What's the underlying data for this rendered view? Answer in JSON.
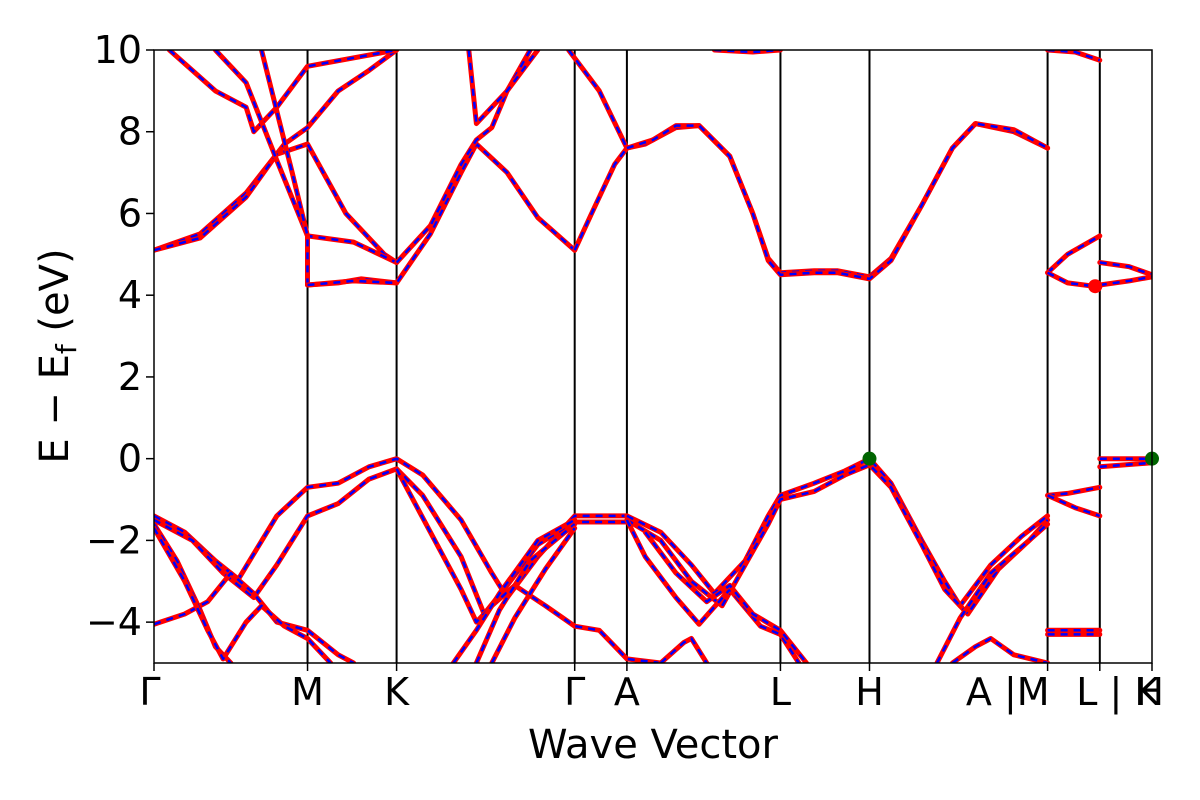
{
  "chart_data": {
    "type": "line",
    "title": "",
    "xlabel": "Wave Vector",
    "ylabel_parts": {
      "main": "E − E",
      "sub": "f",
      "unit": " (eV)"
    },
    "ylim": [
      -5,
      10
    ],
    "yticks": [
      -4,
      -2,
      0,
      2,
      4,
      6,
      8,
      10
    ],
    "ytick_labels": [
      "−4",
      "−2",
      "0",
      "2",
      "4",
      "6",
      "8",
      "10"
    ],
    "kpath_range": [
      0,
      6.5
    ],
    "high_symmetry_points": [
      {
        "label": "Γ",
        "k": 0.0
      },
      {
        "label": "M",
        "k": 1.0
      },
      {
        "label": "K",
        "k": 1.58
      },
      {
        "label": "Γ",
        "k": 2.74
      },
      {
        "label": "A",
        "k": 3.08
      },
      {
        "label": "L",
        "k": 4.08
      },
      {
        "label": "H",
        "k": 4.66
      },
      {
        "label": "A |M",
        "k": 5.82
      },
      {
        "label": "L | K",
        "k": 6.16
      },
      {
        "label": "H",
        "k": 6.5
      }
    ],
    "band_colors": {
      "bands": "#ff0000",
      "overlay": "#0000ff",
      "vbm": "#006400",
      "cbm": "#ff0000",
      "vlines": "#000000"
    },
    "markers": [
      {
        "name": "VBM",
        "k": 4.66,
        "e": 0.0
      },
      {
        "name": "VBM",
        "k": 6.5,
        "e": 0.0
      },
      {
        "name": "CBM",
        "k": 6.13,
        "e": 4.22
      }
    ],
    "series": [
      {
        "points": [
          [
            0,
            5.1
          ],
          [
            0.3,
            5.5
          ],
          [
            0.6,
            6.5
          ],
          [
            0.85,
            7.7
          ],
          [
            1.0,
            8.1
          ],
          [
            1.2,
            9.0
          ],
          [
            1.4,
            9.5
          ],
          [
            1.58,
            10.0
          ]
        ]
      },
      {
        "points": [
          [
            0,
            5.1
          ],
          [
            0.3,
            5.4
          ],
          [
            0.6,
            6.4
          ],
          [
            0.8,
            7.45
          ],
          [
            1.0,
            7.7
          ],
          [
            1.25,
            6.0
          ],
          [
            1.5,
            5.0
          ],
          [
            1.58,
            4.8
          ]
        ]
      },
      {
        "points": [
          [
            0.1,
            10.0
          ],
          [
            0.4,
            9.0
          ],
          [
            0.6,
            8.6
          ],
          [
            0.65,
            8.0
          ],
          [
            0.8,
            8.6
          ],
          [
            1.0,
            9.6
          ],
          [
            1.58,
            10.0
          ]
        ]
      },
      {
        "points": [
          [
            0.4,
            10.0
          ],
          [
            0.6,
            9.2
          ],
          [
            0.8,
            7.3
          ],
          [
            1.0,
            5.45
          ],
          [
            1.3,
            5.3
          ],
          [
            1.58,
            4.8
          ]
        ]
      },
      {
        "points": [
          [
            0.7,
            10.0
          ],
          [
            0.9,
            7.0
          ],
          [
            1.0,
            5.45
          ],
          [
            1.0,
            4.25
          ],
          [
            1.2,
            4.3
          ],
          [
            1.35,
            4.4
          ],
          [
            1.58,
            4.3
          ]
        ]
      },
      {
        "points": [
          [
            1.0,
            4.25
          ],
          [
            1.3,
            4.35
          ],
          [
            1.58,
            4.3
          ],
          [
            1.8,
            5.5
          ],
          [
            2.0,
            7.0
          ],
          [
            2.1,
            7.7
          ],
          [
            2.3,
            7.0
          ],
          [
            2.5,
            5.9
          ],
          [
            2.74,
            5.1
          ]
        ]
      },
      {
        "points": [
          [
            1.58,
            4.8
          ],
          [
            1.8,
            5.7
          ],
          [
            2.0,
            7.2
          ],
          [
            2.1,
            7.8
          ],
          [
            2.2,
            8.1
          ],
          [
            2.3,
            9.0
          ],
          [
            2.45,
            10.0
          ]
        ]
      },
      {
        "points": [
          [
            2.05,
            10.0
          ],
          [
            2.1,
            8.2
          ],
          [
            2.3,
            9.0
          ],
          [
            2.5,
            10.0
          ]
        ]
      },
      {
        "points": [
          [
            2.74,
            5.1
          ],
          [
            2.85,
            6.0
          ],
          [
            3.0,
            7.2
          ],
          [
            3.08,
            7.6
          ]
        ]
      },
      {
        "points": [
          [
            2.7,
            10.0
          ],
          [
            2.9,
            9.0
          ],
          [
            3.08,
            7.6
          ]
        ]
      },
      {
        "points": [
          [
            3.08,
            7.6
          ],
          [
            3.2,
            7.7
          ],
          [
            3.4,
            8.1
          ],
          [
            3.55,
            8.15
          ],
          [
            3.75,
            7.4
          ],
          [
            3.9,
            6.0
          ],
          [
            4.0,
            4.9
          ],
          [
            4.08,
            4.55
          ],
          [
            4.3,
            4.6
          ],
          [
            4.45,
            4.6
          ],
          [
            4.66,
            4.45
          ],
          [
            4.8,
            4.9
          ],
          [
            5.0,
            6.2
          ],
          [
            5.2,
            7.6
          ],
          [
            5.35,
            8.2
          ],
          [
            5.6,
            8.0
          ],
          [
            5.82,
            7.6
          ]
        ]
      },
      {
        "points": [
          [
            3.08,
            7.6
          ],
          [
            3.25,
            7.8
          ],
          [
            3.4,
            8.15
          ],
          [
            3.55,
            8.15
          ],
          [
            3.75,
            7.4
          ],
          [
            3.9,
            6.0
          ],
          [
            4.0,
            4.85
          ],
          [
            4.08,
            4.5
          ],
          [
            4.3,
            4.55
          ],
          [
            4.45,
            4.55
          ],
          [
            4.66,
            4.4
          ],
          [
            4.8,
            4.85
          ],
          [
            5.0,
            6.2
          ],
          [
            5.2,
            7.6
          ],
          [
            5.35,
            8.2
          ],
          [
            5.6,
            8.05
          ],
          [
            5.82,
            7.6
          ]
        ]
      },
      {
        "points": [
          [
            3.65,
            10.0
          ],
          [
            3.9,
            9.95
          ],
          [
            4.08,
            10.0
          ]
        ]
      },
      {
        "points": [
          [
            5.82,
            10.0
          ],
          [
            6.0,
            9.95
          ],
          [
            6.16,
            9.75
          ]
        ]
      },
      {
        "points": [
          [
            5.82,
            4.55
          ],
          [
            5.95,
            5.0
          ],
          [
            6.16,
            5.45
          ]
        ]
      },
      {
        "points": [
          [
            5.82,
            4.55
          ],
          [
            5.95,
            4.3
          ],
          [
            6.16,
            4.2
          ]
        ]
      },
      {
        "points": [
          [
            6.16,
            4.8
          ],
          [
            6.35,
            4.7
          ],
          [
            6.5,
            4.5
          ]
        ]
      },
      {
        "points": [
          [
            6.16,
            4.25
          ],
          [
            6.35,
            4.35
          ],
          [
            6.5,
            4.45
          ]
        ]
      },
      {
        "points": [
          [
            0,
            -1.4
          ],
          [
            0.2,
            -1.8
          ],
          [
            0.4,
            -2.5
          ],
          [
            0.55,
            -2.95
          ],
          [
            0.8,
            -1.4
          ],
          [
            1.0,
            -0.7
          ],
          [
            1.2,
            -0.6
          ],
          [
            1.4,
            -0.2
          ],
          [
            1.58,
            0.0
          ],
          [
            1.75,
            -0.4
          ],
          [
            2.0,
            -1.5
          ],
          [
            2.2,
            -2.8
          ],
          [
            2.3,
            -3.4
          ],
          [
            2.5,
            -2.4
          ],
          [
            2.74,
            -1.4
          ],
          [
            3.08,
            -1.4
          ]
        ]
      },
      {
        "points": [
          [
            0,
            -1.5
          ],
          [
            0.25,
            -2.0
          ],
          [
            0.45,
            -2.8
          ],
          [
            0.65,
            -3.4
          ],
          [
            0.8,
            -2.6
          ],
          [
            1.0,
            -1.4
          ],
          [
            1.2,
            -1.1
          ],
          [
            1.4,
            -0.5
          ],
          [
            1.58,
            -0.25
          ],
          [
            1.75,
            -0.9
          ],
          [
            2.0,
            -2.4
          ],
          [
            2.15,
            -3.8
          ],
          [
            2.3,
            -3.1
          ],
          [
            2.5,
            -2.1
          ],
          [
            2.74,
            -1.55
          ],
          [
            3.08,
            -1.55
          ]
        ]
      },
      {
        "points": [
          [
            0,
            -4.05
          ],
          [
            0.2,
            -3.8
          ],
          [
            0.35,
            -3.5
          ],
          [
            0.5,
            -2.8
          ],
          [
            0.65,
            -3.3
          ],
          [
            0.8,
            -4.0
          ],
          [
            1.0,
            -4.2
          ],
          [
            1.2,
            -4.8
          ],
          [
            1.3,
            -5.0
          ]
        ]
      },
      {
        "points": [
          [
            0,
            -1.6
          ],
          [
            0.15,
            -2.5
          ],
          [
            0.3,
            -3.7
          ],
          [
            0.4,
            -4.6
          ],
          [
            0.5,
            -5.0
          ]
        ]
      },
      {
        "points": [
          [
            0,
            -1.7
          ],
          [
            0.2,
            -3.0
          ],
          [
            0.35,
            -4.2
          ],
          [
            0.45,
            -4.9
          ],
          [
            0.6,
            -4.0
          ],
          [
            0.7,
            -3.6
          ],
          [
            0.85,
            -4.1
          ],
          [
            1.0,
            -4.4
          ],
          [
            1.15,
            -5.0
          ]
        ]
      },
      {
        "points": [
          [
            1.58,
            -0.25
          ],
          [
            1.8,
            -1.8
          ],
          [
            2.0,
            -3.2
          ],
          [
            2.1,
            -4.0
          ],
          [
            2.2,
            -3.6
          ],
          [
            2.35,
            -3.1
          ],
          [
            2.55,
            -3.6
          ],
          [
            2.74,
            -4.1
          ],
          [
            2.9,
            -4.2
          ],
          [
            3.08,
            -4.9
          ],
          [
            3.3,
            -5.0
          ]
        ]
      },
      {
        "points": [
          [
            1.95,
            -5.0
          ],
          [
            2.1,
            -4.2
          ],
          [
            2.25,
            -3.3
          ],
          [
            2.5,
            -2.0
          ],
          [
            2.74,
            -1.5
          ]
        ]
      },
      {
        "points": [
          [
            2.1,
            -5.0
          ],
          [
            2.25,
            -3.7
          ],
          [
            2.45,
            -2.5
          ],
          [
            2.74,
            -1.6
          ]
        ]
      },
      {
        "points": [
          [
            2.2,
            -5.0
          ],
          [
            2.35,
            -3.9
          ],
          [
            2.55,
            -2.7
          ],
          [
            2.74,
            -1.7
          ]
        ]
      },
      {
        "points": [
          [
            3.08,
            -1.4
          ],
          [
            3.3,
            -1.8
          ],
          [
            3.5,
            -2.6
          ],
          [
            3.65,
            -3.3
          ],
          [
            3.85,
            -2.5
          ],
          [
            4.0,
            -1.4
          ],
          [
            4.08,
            -0.9
          ],
          [
            4.3,
            -0.6
          ],
          [
            4.5,
            -0.3
          ],
          [
            4.66,
            0.0
          ],
          [
            4.8,
            -0.6
          ],
          [
            5.0,
            -2.0
          ],
          [
            5.15,
            -3.0
          ],
          [
            5.25,
            -3.6
          ],
          [
            5.45,
            -2.6
          ],
          [
            5.65,
            -1.9
          ],
          [
            5.82,
            -1.4
          ]
        ]
      },
      {
        "points": [
          [
            3.08,
            -1.5
          ],
          [
            3.3,
            -2.0
          ],
          [
            3.5,
            -3.0
          ],
          [
            3.7,
            -3.6
          ],
          [
            3.85,
            -2.6
          ],
          [
            4.0,
            -1.6
          ],
          [
            4.08,
            -1.0
          ],
          [
            4.3,
            -0.8
          ],
          [
            4.5,
            -0.4
          ],
          [
            4.66,
            -0.15
          ],
          [
            4.8,
            -0.7
          ],
          [
            5.0,
            -2.1
          ],
          [
            5.15,
            -3.2
          ],
          [
            5.3,
            -3.8
          ],
          [
            5.5,
            -2.7
          ],
          [
            5.7,
            -2.0
          ],
          [
            5.82,
            -1.5
          ]
        ]
      },
      {
        "points": [
          [
            3.08,
            -1.5
          ],
          [
            3.2,
            -2.4
          ],
          [
            3.4,
            -3.4
          ],
          [
            3.55,
            -4.05
          ],
          [
            3.75,
            -3.2
          ],
          [
            3.95,
            -4.1
          ],
          [
            4.08,
            -4.3
          ],
          [
            4.2,
            -5.0
          ]
        ]
      },
      {
        "points": [
          [
            3.2,
            -1.8
          ],
          [
            3.4,
            -2.8
          ],
          [
            3.6,
            -3.5
          ],
          [
            3.75,
            -3.1
          ],
          [
            3.9,
            -3.8
          ],
          [
            4.08,
            -4.2
          ],
          [
            4.25,
            -5.0
          ]
        ]
      },
      {
        "points": [
          [
            3.3,
            -5.0
          ],
          [
            3.45,
            -4.5
          ],
          [
            3.5,
            -4.4
          ],
          [
            3.6,
            -5.0
          ]
        ]
      },
      {
        "points": [
          [
            5.1,
            -5.0
          ],
          [
            5.25,
            -3.9
          ],
          [
            5.45,
            -2.8
          ],
          [
            5.7,
            -2.0
          ],
          [
            5.82,
            -1.6
          ]
        ]
      },
      {
        "points": [
          [
            5.2,
            -5.0
          ],
          [
            5.35,
            -4.6
          ],
          [
            5.45,
            -4.4
          ],
          [
            5.6,
            -4.8
          ],
          [
            5.82,
            -5.0
          ]
        ]
      },
      {
        "points": [
          [
            5.82,
            -0.9
          ],
          [
            5.95,
            -0.85
          ],
          [
            6.16,
            -0.7
          ]
        ]
      },
      {
        "points": [
          [
            5.82,
            -0.9
          ],
          [
            6.0,
            -1.2
          ],
          [
            6.16,
            -1.4
          ]
        ]
      },
      {
        "points": [
          [
            5.82,
            -4.2
          ],
          [
            6.16,
            -4.2
          ]
        ]
      },
      {
        "points": [
          [
            5.82,
            -4.3
          ],
          [
            6.16,
            -4.3
          ]
        ]
      },
      {
        "points": [
          [
            6.16,
            0.0
          ],
          [
            6.5,
            0.0
          ]
        ]
      },
      {
        "points": [
          [
            6.16,
            -0.2
          ],
          [
            6.5,
            -0.1
          ]
        ]
      }
    ]
  }
}
